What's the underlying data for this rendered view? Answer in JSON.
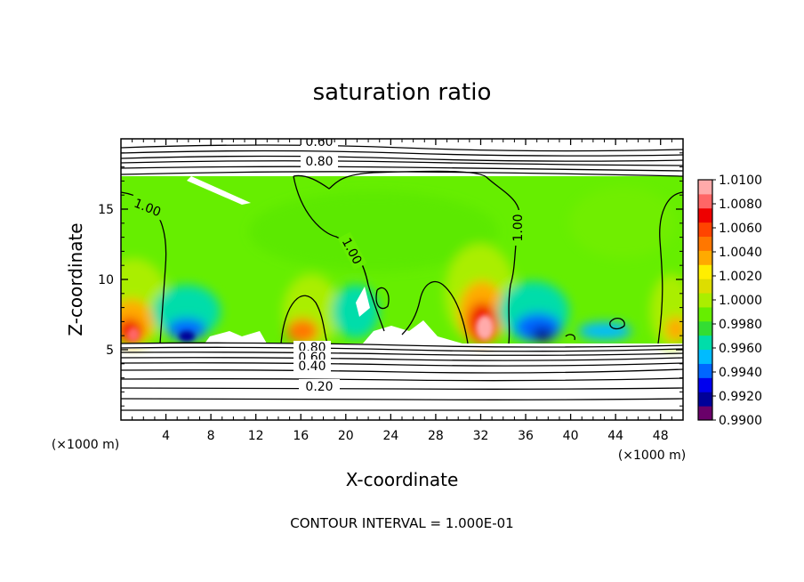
{
  "chart_data": {
    "type": "heatmap",
    "title": "saturation ratio",
    "xlabel": "X-coordinate",
    "ylabel": "Z-coordinate",
    "x_unit": "(×1000 m)",
    "z_unit": "(×1000 m)",
    "xlim": [
      0,
      50
    ],
    "ylim": [
      0,
      20
    ],
    "x_ticks": [
      4,
      8,
      12,
      16,
      20,
      24,
      28,
      32,
      36,
      40,
      44,
      48
    ],
    "y_ticks": [
      5,
      10,
      15
    ],
    "contour_interval_text": "CONTOUR INTERVAL = 1.000E-01",
    "colorbar": {
      "min": 0.99,
      "max": 1.01,
      "ticks": [
        "1.0100",
        "1.0080",
        "1.0060",
        "1.0040",
        "1.0020",
        "1.0000",
        "0.9980",
        "0.9960",
        "0.9940",
        "0.9920",
        "0.9900"
      ],
      "colors": [
        "#6a006a",
        "#000099",
        "#0000ee",
        "#0066ff",
        "#00bbff",
        "#00ddaa",
        "#33dd33",
        "#66ee00",
        "#aaee00",
        "#dddd00",
        "#ffee00",
        "#ffaa00",
        "#ff7700",
        "#ff4400",
        "#ee0000",
        "#ff6666",
        "#ffaaaa"
      ]
    },
    "contour_labels": [
      {
        "text": "0.60",
        "x": 17.2,
        "z": 19.6
      },
      {
        "text": "0.80",
        "x": 17.2,
        "z": 18.6
      },
      {
        "text": "1.00",
        "x": 2.4,
        "z": 15.4
      },
      {
        "text": "1.00",
        "x": 20.9,
        "z": 11.5
      },
      {
        "text": "1.00",
        "x": 35.0,
        "z": 13.4
      },
      {
        "text": "0.80",
        "x": 16.3,
        "z": 5.2
      },
      {
        "text": "0.60",
        "x": 16.3,
        "z": 4.7
      },
      {
        "text": "0.40",
        "x": 16.3,
        "z": 4.0
      },
      {
        "text": "0.20",
        "x": 17.0,
        "z": 2.0
      }
    ]
  }
}
